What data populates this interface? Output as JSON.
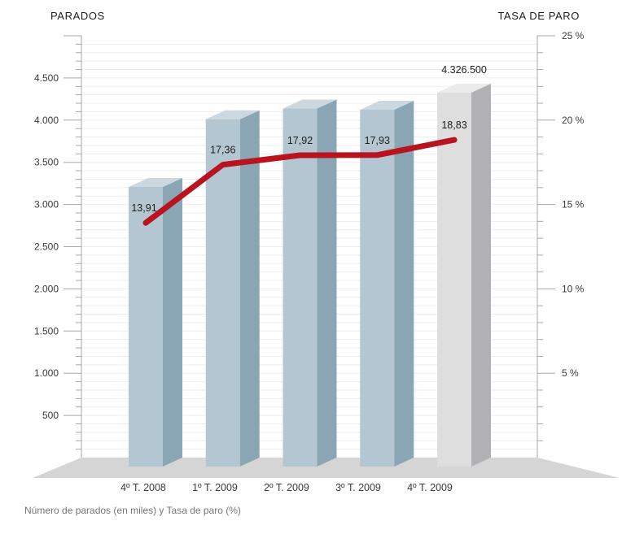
{
  "header": {
    "left_axis_title": "PARADOS",
    "right_axis_title": "TASA DE PARO"
  },
  "footer": {
    "caption": "Número de parados (en miles) y Tasa de paro (%)"
  },
  "chart_data": {
    "type": "bar",
    "subtype": "3d-bar-with-line-overlay",
    "title": "PARADOS / TASA DE PARO",
    "categories": [
      "4º T. 2008",
      "1º T. 2009",
      "2º T. 2009",
      "3º T. 2009",
      "4º T. 2009"
    ],
    "series": [
      {
        "name": "Parados (en miles)",
        "type": "bar",
        "axis": "left",
        "values": [
          3207.9,
          4010.7,
          4137.5,
          4123.3,
          4326.5
        ]
      },
      {
        "name": "Tasa de paro (%)",
        "type": "line",
        "axis": "right",
        "values": [
          13.91,
          17.36,
          17.92,
          17.93,
          18.83
        ]
      }
    ],
    "point_labels": [
      "13,91",
      "17,36",
      "17,92",
      "17,93",
      "18,83"
    ],
    "bar_top_label": {
      "index": 4,
      "text": "4.326.500"
    },
    "highlighted_bar_index": 4,
    "left_axis": {
      "label": "PARADOS",
      "min": 0,
      "max": 5000,
      "major_step": 500,
      "minor_step": 100,
      "tick_labels": [
        "500",
        "1.000",
        "1.500",
        "2.000",
        "2.500",
        "3.000",
        "3.500",
        "4.000",
        "4.500"
      ]
    },
    "right_axis": {
      "label": "TASA DE PARO",
      "min": 0,
      "max": 25,
      "major_step": 5,
      "minor_step": 1,
      "tick_labels": [
        "5 %",
        "10 %",
        "15 %",
        "20 %",
        "25 %"
      ]
    },
    "grid": true,
    "legend": false,
    "colors": {
      "bar_front": "#b4c6d1",
      "bar_side": "#8aa5b3",
      "bar_top": "#cbd8e0",
      "bar_highlight_front": "#dedede",
      "bar_highlight_side": "#b1b1b3",
      "bar_highlight_top": "#ebebec",
      "line": "#b8141f",
      "floor": "#d5d5d5",
      "grid": "#ededed",
      "axis": "#a9a9a9",
      "tick_text": "#3a3a3a",
      "value_text": "#1d1d1d"
    }
  }
}
